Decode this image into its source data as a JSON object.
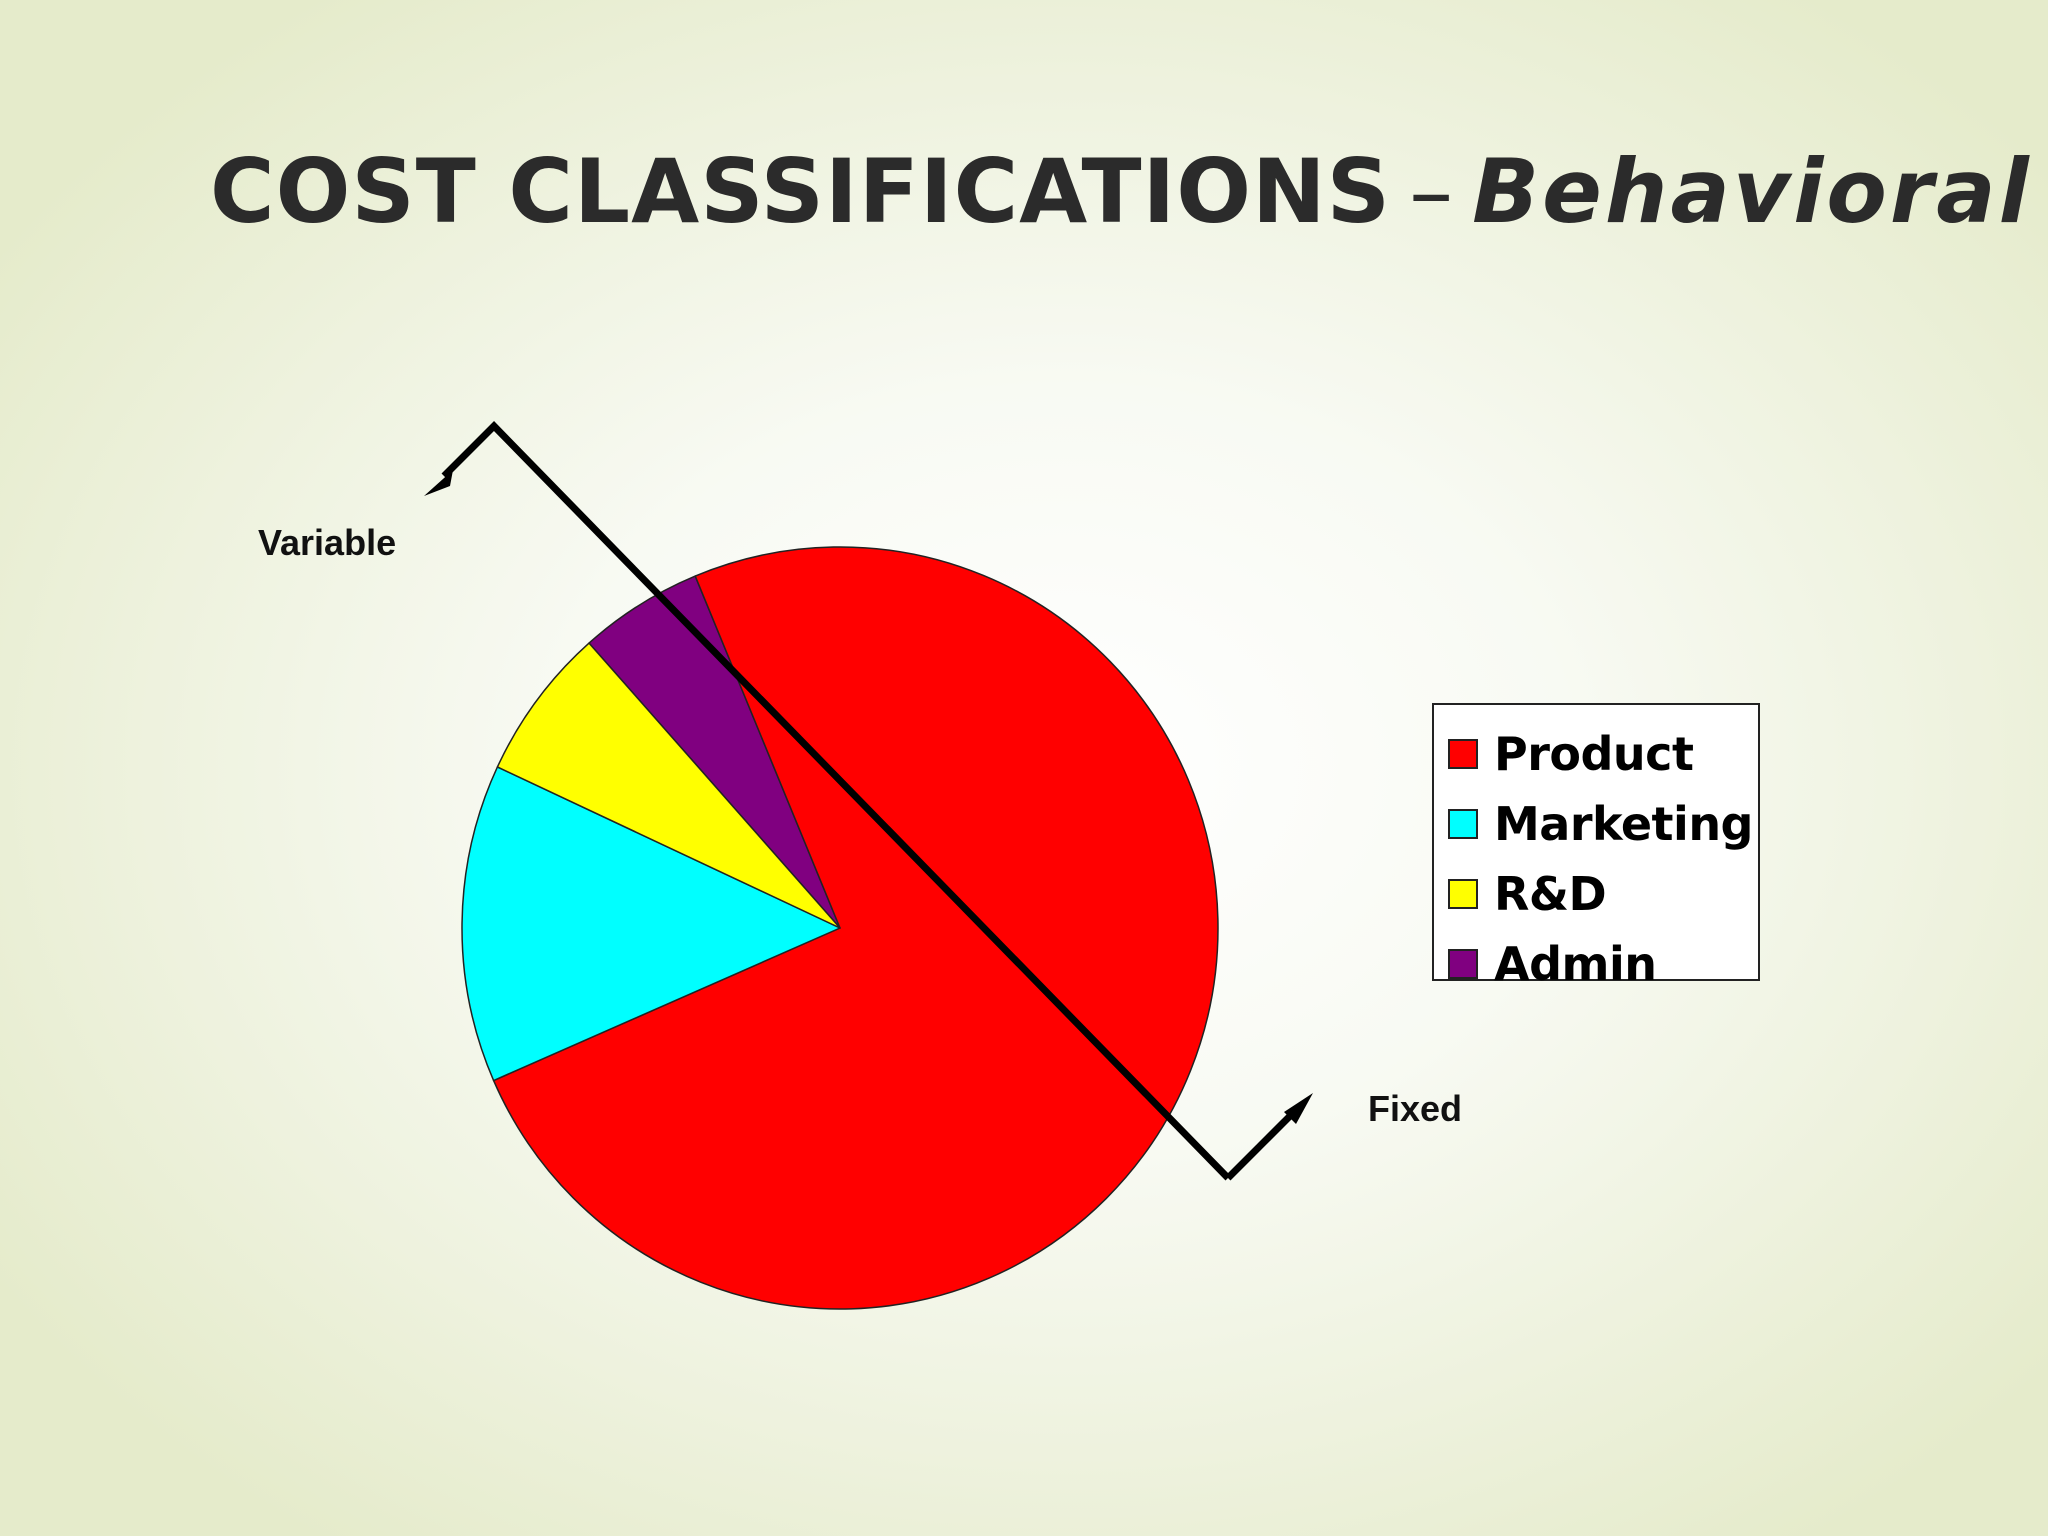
{
  "slide": {
    "title_main": "COST CLASSIFICATIONS",
    "title_sep": "–",
    "title_sub": "Behavioral"
  },
  "annotations": {
    "variable_label": "Variable",
    "fixed_label": "Fixed",
    "divider_color": "#000000"
  },
  "chart_data": {
    "type": "pie",
    "title": "",
    "categories": [
      "Product",
      "Marketing",
      "R&D",
      "Admin"
    ],
    "values": [
      0.747,
      0.135,
      0.065,
      0.053
    ],
    "value_unit": "share of total (estimated from slice angles)",
    "colors": [
      "#ff0000",
      "#00ffff",
      "#ffff00",
      "#800080"
    ],
    "legend": {
      "position": "right",
      "entries": [
        "Product",
        "Marketing",
        "R&D",
        "Admin"
      ]
    },
    "slice_order": [
      "Admin",
      "Product",
      "Marketing",
      "R&D"
    ],
    "start_slice": "Admin",
    "direction": "clockwise"
  }
}
